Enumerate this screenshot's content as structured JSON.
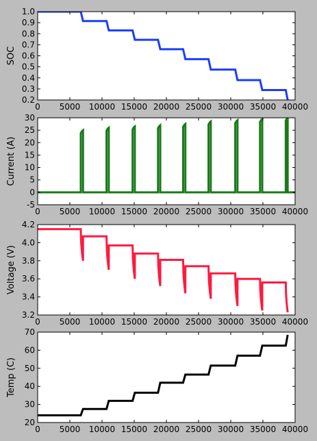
{
  "chart_data": [
    {
      "type": "line",
      "ylabel": "SOC",
      "xlabel": "",
      "xlim": [
        0,
        40000
      ],
      "ylim": [
        0.2,
        1.0
      ],
      "x_ticks": [
        "0",
        "5000",
        "10000",
        "15000",
        "20000",
        "25000",
        "30000",
        "35000",
        "40000"
      ],
      "y_ticks": [
        "0.2",
        "0.3",
        "0.4",
        "0.5",
        "0.6",
        "0.7",
        "0.8",
        "0.9",
        "1.0"
      ],
      "color": "#1a3cff",
      "series": [
        {
          "x": [
            0,
            6700,
            7050,
            10700,
            11050,
            14750,
            15100,
            18700,
            19050,
            22600,
            22950,
            26550,
            26900,
            30700,
            31050,
            34550,
            34900,
            38550,
            38850
          ],
          "y": [
            1.0,
            1.0,
            0.915,
            0.915,
            0.83,
            0.83,
            0.745,
            0.745,
            0.66,
            0.66,
            0.57,
            0.57,
            0.475,
            0.475,
            0.38,
            0.38,
            0.29,
            0.29,
            0.2
          ]
        }
      ]
    },
    {
      "type": "line",
      "ylabel": "Current (A)",
      "xlabel": "",
      "xlim": [
        0,
        40000
      ],
      "ylim": [
        -5,
        30
      ],
      "x_ticks": [
        "0",
        "5000",
        "10000",
        "15000",
        "20000",
        "25000",
        "30000",
        "35000",
        "40000"
      ],
      "y_ticks": [
        "-5",
        "0",
        "5",
        "10",
        "15",
        "20",
        "25",
        "30"
      ],
      "color": "#1a7a1a",
      "pulses": [
        {
          "start": 6700,
          "end": 7050,
          "peak": 25
        },
        {
          "start": 10700,
          "end": 11050,
          "peak": 26
        },
        {
          "start": 14750,
          "end": 15100,
          "peak": 26.5
        },
        {
          "start": 18700,
          "end": 19050,
          "peak": 27
        },
        {
          "start": 22600,
          "end": 22950,
          "peak": 27.5
        },
        {
          "start": 26550,
          "end": 26900,
          "peak": 28.5
        },
        {
          "start": 30700,
          "end": 31050,
          "peak": 29
        },
        {
          "start": 34550,
          "end": 34900,
          "peak": 29.5
        },
        {
          "start": 38550,
          "end": 38850,
          "peak": 30
        }
      ]
    },
    {
      "type": "line",
      "ylabel": "Voltage (V)",
      "xlabel": "",
      "xlim": [
        0,
        40000
      ],
      "ylim": [
        3.2,
        4.2
      ],
      "x_ticks": [
        "0",
        "5000",
        "10000",
        "15000",
        "20000",
        "25000",
        "30000",
        "35000",
        "40000"
      ],
      "y_ticks": [
        "3.2",
        "3.4",
        "3.6",
        "3.8",
        "4.0",
        "4.2"
      ],
      "color": "#ff1a40",
      "steps": [
        {
          "start": 0,
          "end": 6700,
          "level": 4.15,
          "dip": 3.8
        },
        {
          "start": 7050,
          "end": 10700,
          "level": 4.07,
          "dip": 3.7
        },
        {
          "start": 11050,
          "end": 14750,
          "level": 3.97,
          "dip": 3.6
        },
        {
          "start": 15100,
          "end": 18700,
          "level": 3.88,
          "dip": 3.52
        },
        {
          "start": 19050,
          "end": 22600,
          "level": 3.81,
          "dip": 3.44
        },
        {
          "start": 22950,
          "end": 26550,
          "level": 3.74,
          "dip": 3.38
        },
        {
          "start": 26900,
          "end": 30700,
          "level": 3.66,
          "dip": 3.3
        },
        {
          "start": 31050,
          "end": 34550,
          "level": 3.6,
          "dip": 3.25
        },
        {
          "start": 34900,
          "end": 38550,
          "level": 3.56,
          "dip": 3.23
        }
      ]
    },
    {
      "type": "line",
      "ylabel": "Temp (C)",
      "xlabel": "",
      "xlim": [
        0,
        40000
      ],
      "ylim": [
        20,
        70
      ],
      "x_ticks": [
        "0",
        "5000",
        "10000",
        "15000",
        "20000",
        "25000",
        "30000",
        "35000",
        "40000"
      ],
      "y_ticks": [
        "20",
        "30",
        "40",
        "50",
        "60",
        "70"
      ],
      "color": "#000000",
      "series": [
        {
          "x": [
            0,
            6700,
            7050,
            10700,
            11050,
            14750,
            15100,
            18700,
            19050,
            22600,
            22950,
            26550,
            26900,
            30700,
            31050,
            34550,
            34900,
            38550,
            38850
          ],
          "y": [
            24,
            24,
            27.5,
            27.5,
            32,
            32,
            36.5,
            36.5,
            42,
            42,
            46.5,
            46.5,
            51.5,
            51.5,
            57,
            57,
            62.5,
            62.5,
            68.5
          ]
        }
      ]
    }
  ]
}
